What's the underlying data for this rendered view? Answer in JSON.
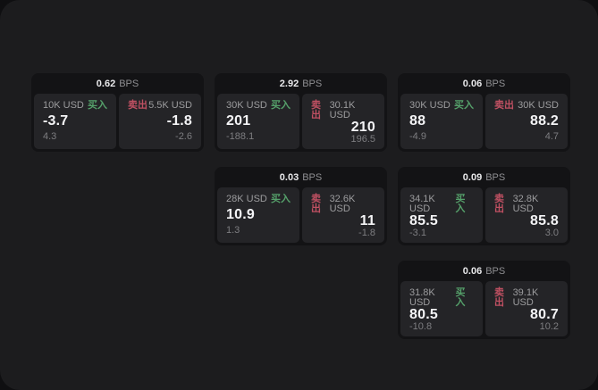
{
  "labels": {
    "bps_unit": "BPS",
    "buy": "买入",
    "sell": "卖出"
  },
  "colors": {
    "buy_green": "#55a06a",
    "sell_red": "#bf5062",
    "window_bg": "#1c1c1e",
    "card_bg": "#131315",
    "panel_bg": "#242427"
  },
  "cards": [
    {
      "bps": "0.62",
      "buy": {
        "size": "10K USD",
        "value": "-3.7",
        "delta": "4.3"
      },
      "sell": {
        "size": "5.5K USD",
        "value": "-1.8",
        "delta": "-2.6"
      }
    },
    {
      "bps": "2.92",
      "buy": {
        "size": "30K USD",
        "value": "201",
        "delta": "-188.1"
      },
      "sell": {
        "size": "30.1K USD",
        "value": "210",
        "delta": "196.5"
      }
    },
    {
      "bps": "0.06",
      "buy": {
        "size": "30K USD",
        "value": "88",
        "delta": "-4.9"
      },
      "sell": {
        "size": "30K USD",
        "value": "88.2",
        "delta": "4.7"
      }
    },
    {
      "bps": "0.03",
      "buy": {
        "size": "28K USD",
        "value": "10.9",
        "delta": "1.3"
      },
      "sell": {
        "size": "32.6K USD",
        "value": "11",
        "delta": "-1.8"
      }
    },
    {
      "bps": "0.09",
      "buy": {
        "size": "34.1K USD",
        "value": "85.5",
        "delta": "-3.1"
      },
      "sell": {
        "size": "32.8K USD",
        "value": "85.8",
        "delta": "3.0"
      }
    },
    {
      "bps": "0.06",
      "buy": {
        "size": "31.8K USD",
        "value": "80.5",
        "delta": "-10.8"
      },
      "sell": {
        "size": "39.1K USD",
        "value": "80.7",
        "delta": "10.2"
      }
    }
  ]
}
